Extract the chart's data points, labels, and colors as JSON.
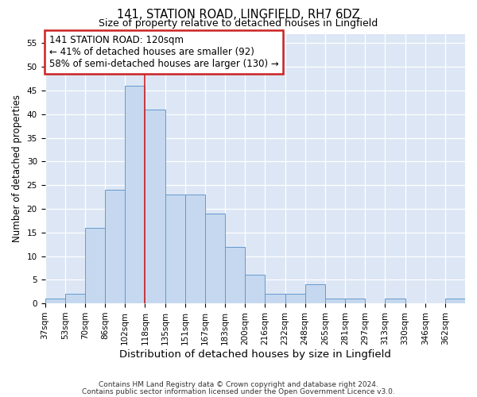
{
  "title": "141, STATION ROAD, LINGFIELD, RH7 6DZ",
  "subtitle": "Size of property relative to detached houses in Lingfield",
  "xlabel": "Distribution of detached houses by size in Lingfield",
  "ylabel": "Number of detached properties",
  "bar_values": [
    1,
    2,
    16,
    24,
    46,
    41,
    23,
    23,
    19,
    12,
    6,
    2,
    2,
    4,
    1,
    1,
    0,
    1,
    0,
    0,
    1
  ],
  "bar_labels": [
    "37sqm",
    "53sqm",
    "70sqm",
    "86sqm",
    "102sqm",
    "118sqm",
    "135sqm",
    "151sqm",
    "167sqm",
    "183sqm",
    "200sqm",
    "216sqm",
    "232sqm",
    "248sqm",
    "265sqm",
    "281sqm",
    "297sqm",
    "313sqm",
    "330sqm",
    "346sqm",
    "362sqm"
  ],
  "bar_color": "#c5d8ef",
  "bar_edge_color": "#6699cc",
  "vline_x": 5.0,
  "vline_color": "#cc2222",
  "annotation_text": "141 STATION ROAD: 120sqm\n← 41% of detached houses are smaller (92)\n58% of semi-detached houses are larger (130) →",
  "annotation_box_facecolor": "#ffffff",
  "annotation_box_edgecolor": "#cc2222",
  "ylim": [
    0,
    57
  ],
  "yticks": [
    0,
    5,
    10,
    15,
    20,
    25,
    30,
    35,
    40,
    45,
    50,
    55
  ],
  "plot_bg_color": "#dce6f5",
  "grid_color": "#ffffff",
  "footer_line1": "Contains HM Land Registry data © Crown copyright and database right 2024.",
  "footer_line2": "Contains public sector information licensed under the Open Government Licence v3.0.",
  "title_fontsize": 10.5,
  "subtitle_fontsize": 9,
  "xlabel_fontsize": 9.5,
  "ylabel_fontsize": 8.5,
  "tick_fontsize": 7.5,
  "annotation_fontsize": 8.5,
  "footer_fontsize": 6.5
}
